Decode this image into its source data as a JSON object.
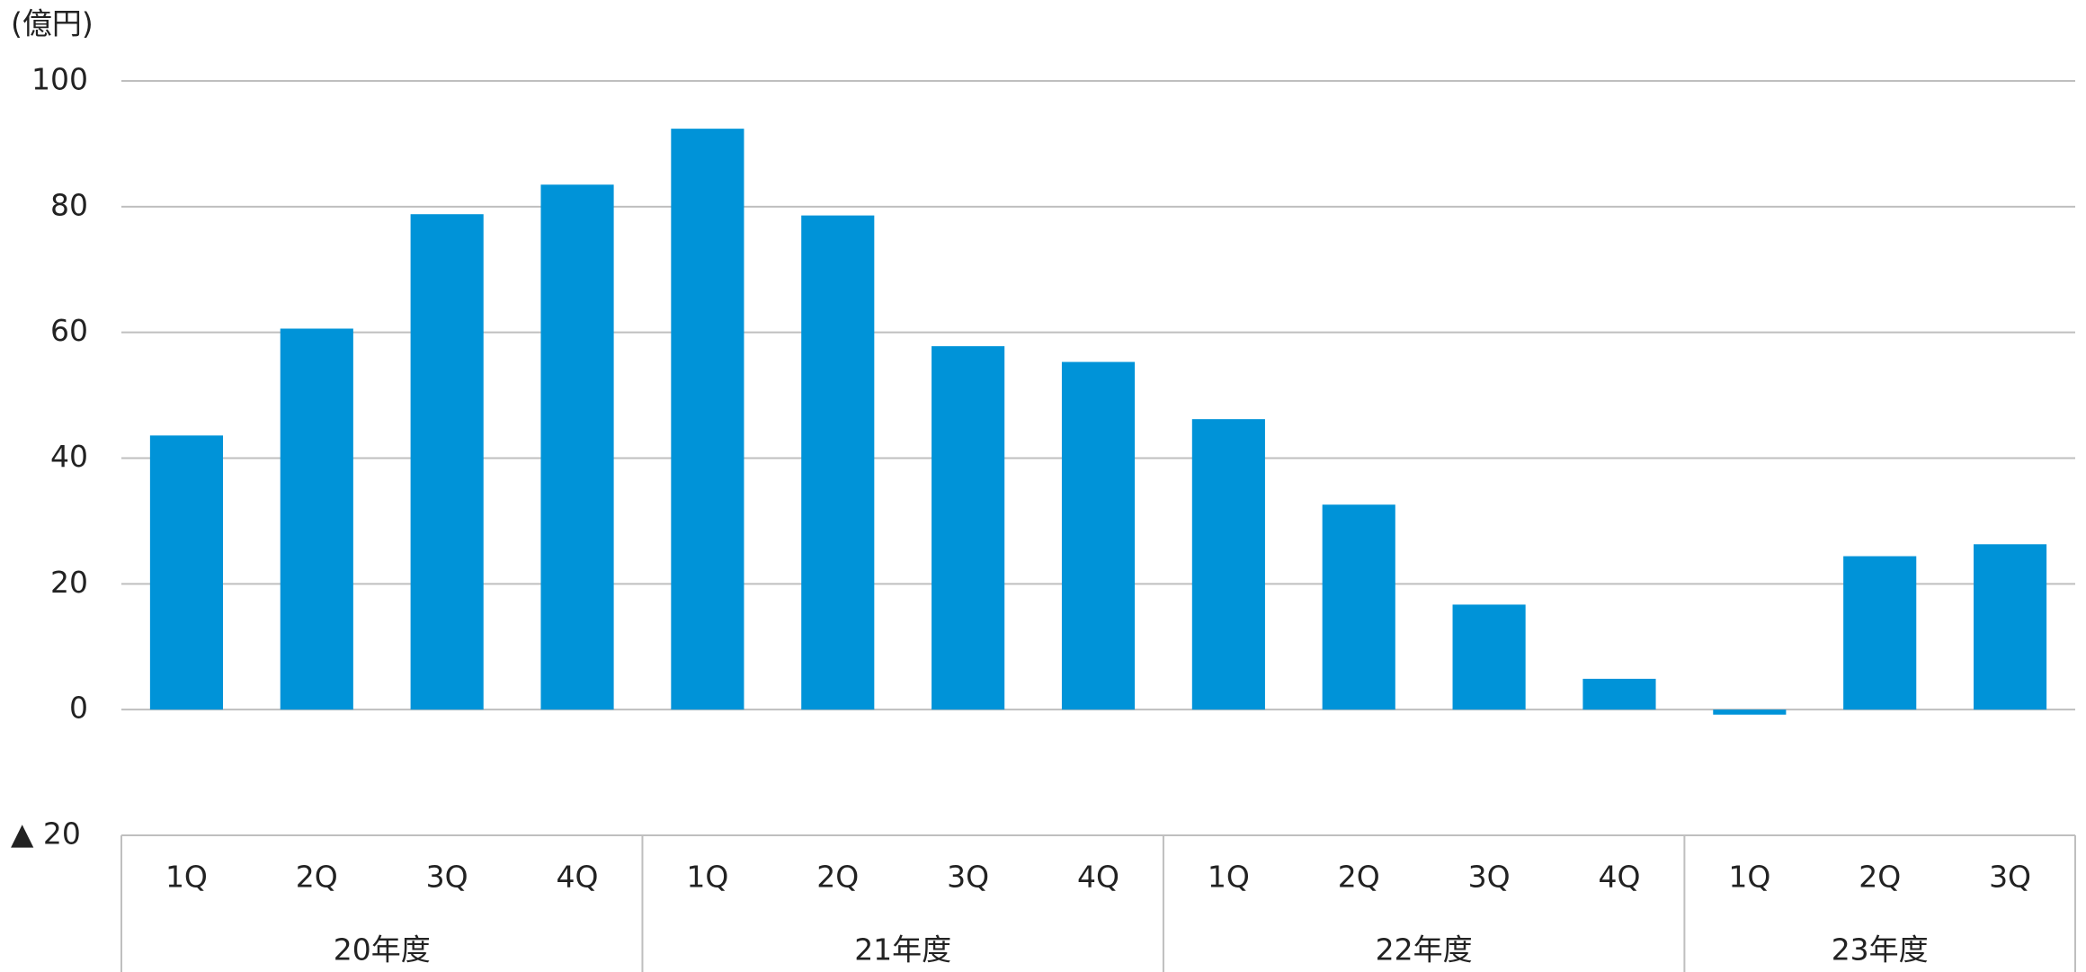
{
  "chart_data": {
    "type": "bar",
    "y_label": "(億円)",
    "groups": [
      {
        "name": "20年度",
        "categories": [
          "1Q",
          "2Q",
          "3Q",
          "4Q"
        ]
      },
      {
        "name": "21年度",
        "categories": [
          "1Q",
          "2Q",
          "3Q",
          "4Q"
        ]
      },
      {
        "name": "22年度",
        "categories": [
          "1Q",
          "2Q",
          "3Q",
          "4Q"
        ]
      },
      {
        "name": "23年度",
        "categories": [
          "1Q",
          "2Q",
          "3Q"
        ]
      }
    ],
    "values": [
      43.6,
      60.6,
      78.8,
      83.5,
      92.4,
      78.6,
      57.8,
      55.3,
      46.2,
      32.6,
      16.7,
      4.9,
      -0.8,
      24.4,
      26.3
    ],
    "color": "#0093d8",
    "ylim": [
      -20,
      100
    ],
    "yticks": [
      {
        "value": -20,
        "label": "▲ 20"
      },
      0,
      20,
      40,
      60,
      80,
      100
    ],
    "grid": true
  }
}
